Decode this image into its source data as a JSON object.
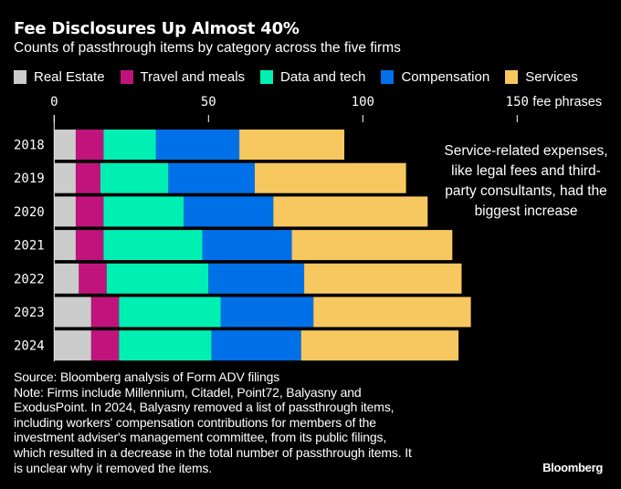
{
  "title": "Fee Disclosures Up Almost 40%",
  "subtitle": "Counts of passthrough items by category across the five firms",
  "annotation": "Service-related expenses, like legal fees and third-party consultants, had the biggest increase",
  "source": "Source: Bloomberg analysis of Form ADV filings",
  "note_lines": [
    "Note: Firms include Millennium, Citadel, Point72, Balyasny and",
    "ExodusPoint. In 2024, Balyasny removed a list of passthrough items,",
    "including workers' compensation contributions for members of the",
    "investment adviser's management committee, from its public filings,",
    "which resulted in a decrease in the total number of passthrough items. It",
    "is unclear why it removed the items."
  ],
  "brand": "Bloomberg",
  "chart_data": {
    "type": "bar",
    "orientation": "horizontal",
    "stacked": true,
    "categories": [
      "2018",
      "2019",
      "2020",
      "2021",
      "2022",
      "2023",
      "2024"
    ],
    "series": [
      {
        "name": "Real Estate",
        "color": "#cccccc",
        "values": [
          7,
          7,
          7,
          7,
          8,
          12,
          12
        ]
      },
      {
        "name": "Travel and meals",
        "color": "#c0147c",
        "values": [
          9,
          8,
          9,
          9,
          9,
          9,
          9
        ]
      },
      {
        "name": "Data and tech",
        "color": "#00f0b4",
        "values": [
          17,
          22,
          26,
          32,
          33,
          33,
          30
        ]
      },
      {
        "name": "Compensation",
        "color": "#0070e8",
        "values": [
          27,
          28,
          29,
          29,
          31,
          30,
          29
        ]
      },
      {
        "name": "Services",
        "color": "#f8c860",
        "values": [
          34,
          49,
          50,
          52,
          51,
          51,
          51
        ]
      }
    ],
    "xticks": [
      "0",
      "50",
      "100",
      "150"
    ],
    "xtick_values": [
      0,
      50,
      100,
      150
    ],
    "xunit": "fee phrases",
    "xlim": [
      0,
      180
    ],
    "legend": "top",
    "grid": false
  }
}
